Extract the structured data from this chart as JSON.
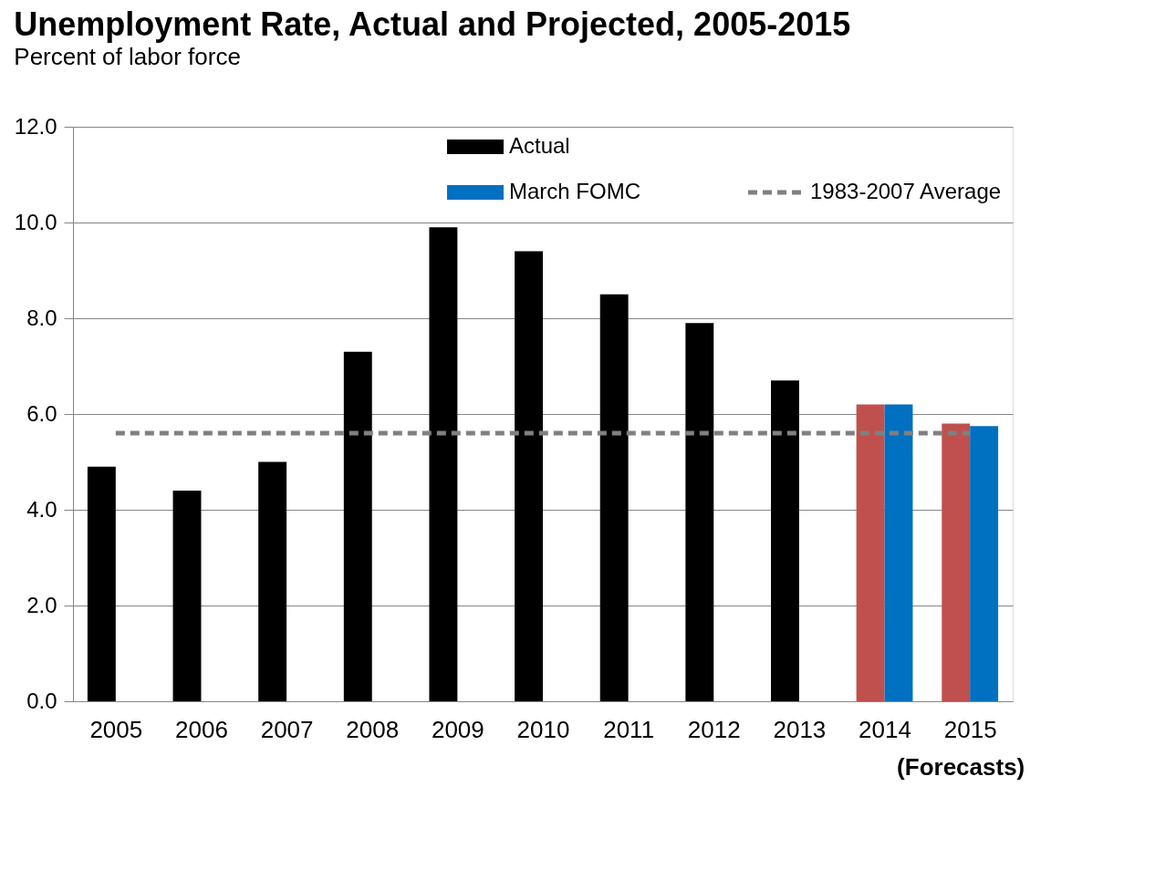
{
  "chart_data": {
    "type": "bar",
    "title": "Unemployment Rate, Actual and Projected, 2005-2015",
    "subtitle": "Percent of labor force",
    "categories": [
      "2005",
      "2006",
      "2007",
      "2008",
      "2009",
      "2010",
      "2011",
      "2012",
      "2013",
      "2014",
      "2015"
    ],
    "series": [
      {
        "name": "Actual",
        "color": "#000000",
        "values": [
          4.9,
          4.4,
          5.0,
          7.3,
          9.9,
          9.4,
          8.5,
          7.9,
          6.7,
          null,
          null
        ]
      },
      {
        "color": "#c0504d",
        "values": [
          null,
          null,
          null,
          null,
          null,
          null,
          null,
          null,
          null,
          6.2,
          5.8
        ]
      },
      {
        "name": "March FOMC",
        "color": "#0070c0",
        "values": [
          null,
          null,
          null,
          null,
          null,
          null,
          null,
          null,
          null,
          6.2,
          5.75
        ]
      }
    ],
    "ref_lines": [
      {
        "axis": "y",
        "value": 5.6,
        "label": "1983-2007 Average",
        "color": "#808080",
        "line_style": "dashed"
      }
    ],
    "ylim": [
      0,
      12
    ],
    "yticks": [
      {
        "value": 0,
        "label": "0.0"
      },
      {
        "value": 2,
        "label": "2.0"
      },
      {
        "value": 4,
        "label": "4.0"
      },
      {
        "value": 6,
        "label": "6.0"
      },
      {
        "value": 8,
        "label": "8.0"
      },
      {
        "value": 10,
        "label": "10.0"
      },
      {
        "value": 12,
        "label": "12.0"
      }
    ],
    "grid": "y",
    "legend": "top right",
    "stacked": false,
    "annotations": [
      "(Forecasts)"
    ]
  }
}
